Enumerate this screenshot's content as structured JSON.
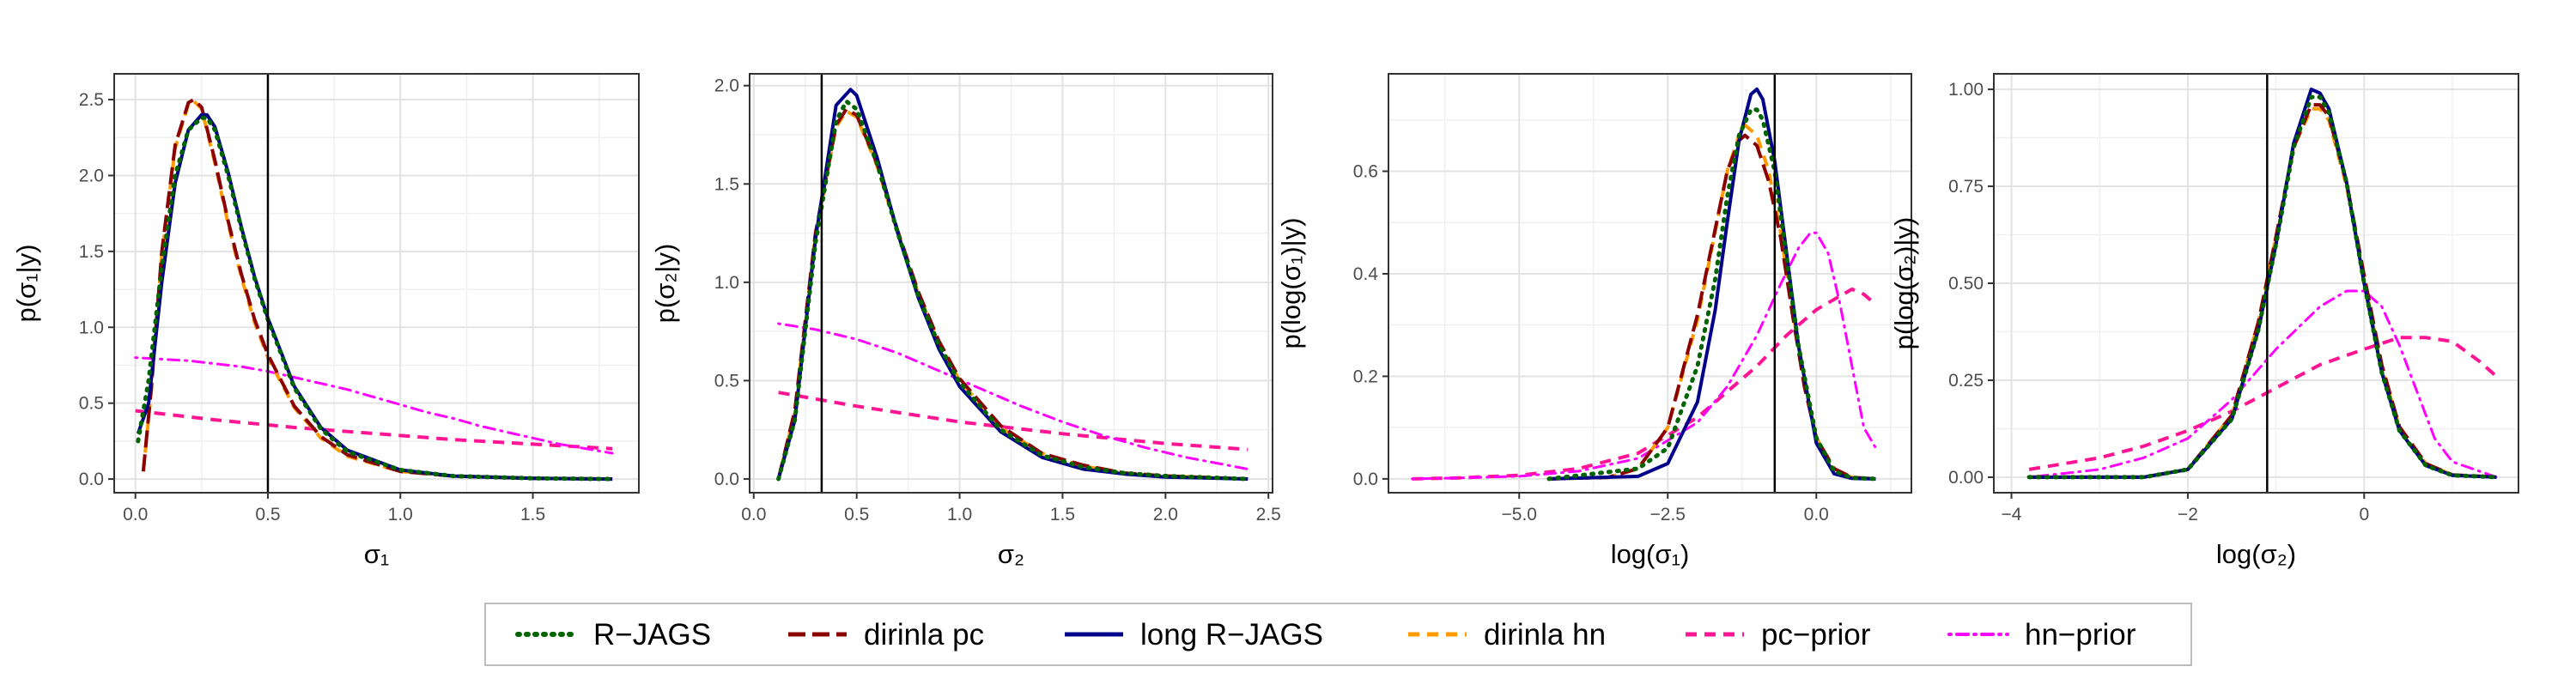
{
  "legend": {
    "items": [
      {
        "label": "R−JAGS",
        "color": "#006400",
        "dash": "dotted"
      },
      {
        "label": "dirinla pc",
        "color": "#8B0000",
        "dash": "longdash"
      },
      {
        "label": "long R−JAGS",
        "color": "#00008B",
        "dash": "solid"
      },
      {
        "label": "dirinla hn",
        "color": "#FF9900",
        "dash": "dashed"
      },
      {
        "label": "pc−prior",
        "color": "#FF1493",
        "dash": "dashed"
      },
      {
        "label": "hn−prior",
        "color": "#FF00FF",
        "dash": "dotdash"
      }
    ]
  },
  "chart_data": [
    {
      "type": "line",
      "xlabel": "σ₁",
      "ylabel": "p(σ₁|y)",
      "xlim": [
        -0.08,
        1.9
      ],
      "ylim": [
        -0.09,
        2.67
      ],
      "xticks": [
        0.0,
        0.5,
        1.0,
        1.5
      ],
      "xticklabels": [
        "0.0",
        "0.5",
        "1.0",
        "1.5"
      ],
      "yticks": [
        0.0,
        0.5,
        1.0,
        1.5,
        2.0,
        2.5
      ],
      "yticklabels": [
        "0.0",
        "0.5",
        "1.0",
        "1.5",
        "2.0",
        "2.5"
      ],
      "vline": 0.5,
      "series": [
        {
          "name": "R−JAGS",
          "x": [
            0.01,
            0.05,
            0.1,
            0.15,
            0.2,
            0.25,
            0.27,
            0.3,
            0.35,
            0.4,
            0.45,
            0.5,
            0.6,
            0.7,
            0.8,
            1.0,
            1.2,
            1.5,
            1.8
          ],
          "y": [
            0.25,
            0.65,
            1.4,
            2.0,
            2.3,
            2.38,
            2.38,
            2.3,
            2.0,
            1.65,
            1.32,
            1.05,
            0.6,
            0.33,
            0.18,
            0.06,
            0.02,
            0.005,
            0.0
          ]
        },
        {
          "name": "dirinla pc",
          "x": [
            0.03,
            0.06,
            0.1,
            0.15,
            0.2,
            0.22,
            0.25,
            0.3,
            0.35,
            0.4,
            0.45,
            0.5,
            0.6,
            0.7,
            0.8,
            1.0,
            1.2,
            1.5,
            1.8
          ],
          "y": [
            0.05,
            0.6,
            1.5,
            2.2,
            2.48,
            2.5,
            2.45,
            2.1,
            1.7,
            1.35,
            1.05,
            0.82,
            0.48,
            0.28,
            0.16,
            0.05,
            0.02,
            0.005,
            0.0
          ]
        },
        {
          "name": "long R−JAGS",
          "x": [
            0.01,
            0.05,
            0.1,
            0.15,
            0.2,
            0.25,
            0.27,
            0.3,
            0.35,
            0.4,
            0.45,
            0.5,
            0.6,
            0.7,
            0.8,
            1.0,
            1.2,
            1.5,
            1.8
          ],
          "y": [
            0.3,
            0.5,
            1.3,
            1.95,
            2.3,
            2.4,
            2.4,
            2.32,
            2.02,
            1.66,
            1.33,
            1.06,
            0.61,
            0.34,
            0.19,
            0.06,
            0.02,
            0.005,
            0.0
          ]
        },
        {
          "name": "dirinla hn",
          "x": [
            0.03,
            0.06,
            0.1,
            0.15,
            0.2,
            0.22,
            0.25,
            0.3,
            0.35,
            0.4,
            0.45,
            0.5,
            0.6,
            0.7,
            0.8,
            1.0,
            1.2,
            1.5,
            1.8
          ],
          "y": [
            0.05,
            0.58,
            1.48,
            2.18,
            2.47,
            2.49,
            2.44,
            2.08,
            1.68,
            1.33,
            1.03,
            0.8,
            0.47,
            0.27,
            0.15,
            0.05,
            0.02,
            0.005,
            0.0
          ]
        },
        {
          "name": "pc−prior",
          "x": [
            0.0,
            0.3,
            0.6,
            0.9,
            1.2,
            1.5,
            1.8
          ],
          "y": [
            0.45,
            0.39,
            0.34,
            0.3,
            0.26,
            0.23,
            0.2
          ]
        },
        {
          "name": "hn−prior",
          "x": [
            0.0,
            0.1,
            0.2,
            0.3,
            0.4,
            0.5,
            0.6,
            0.7,
            0.8,
            0.9,
            1.0,
            1.1,
            1.2,
            1.3,
            1.4,
            1.5,
            1.6,
            1.7,
            1.8
          ],
          "y": [
            0.8,
            0.79,
            0.78,
            0.76,
            0.74,
            0.71,
            0.67,
            0.63,
            0.59,
            0.54,
            0.49,
            0.44,
            0.4,
            0.35,
            0.31,
            0.27,
            0.23,
            0.2,
            0.17
          ]
        }
      ]
    },
    {
      "type": "line",
      "xlabel": "σ₂",
      "ylabel": "p(σ₂|y)",
      "xlim": [
        -0.02,
        2.52
      ],
      "ylim": [
        -0.07,
        2.06
      ],
      "xticks": [
        0.0,
        0.5,
        1.0,
        1.5,
        2.0,
        2.5
      ],
      "xticklabels": [
        "0.0",
        "0.5",
        "1.0",
        "1.5",
        "2.0",
        "2.5"
      ],
      "yticks": [
        0.0,
        0.5,
        1.0,
        1.5,
        2.0
      ],
      "yticklabels": [
        "0.0",
        "0.5",
        "1.0",
        "1.5",
        "2.0"
      ],
      "vline": 0.33,
      "series": [
        {
          "name": "R−JAGS",
          "x": [
            0.12,
            0.2,
            0.3,
            0.4,
            0.45,
            0.5,
            0.6,
            0.7,
            0.8,
            0.9,
            1.0,
            1.2,
            1.4,
            1.6,
            1.8,
            2.0,
            2.4
          ],
          "y": [
            0.0,
            0.3,
            1.2,
            1.82,
            1.92,
            1.88,
            1.6,
            1.25,
            0.93,
            0.68,
            0.49,
            0.25,
            0.12,
            0.06,
            0.03,
            0.015,
            0.0
          ]
        },
        {
          "name": "dirinla pc",
          "x": [
            0.12,
            0.2,
            0.3,
            0.4,
            0.45,
            0.5,
            0.6,
            0.7,
            0.8,
            0.9,
            1.0,
            1.2,
            1.4,
            1.6,
            1.8,
            2.0,
            2.4
          ],
          "y": [
            0.0,
            0.35,
            1.25,
            1.8,
            1.88,
            1.85,
            1.6,
            1.26,
            0.95,
            0.7,
            0.51,
            0.27,
            0.13,
            0.07,
            0.03,
            0.015,
            0.0
          ]
        },
        {
          "name": "long R−JAGS",
          "x": [
            0.12,
            0.2,
            0.3,
            0.4,
            0.47,
            0.5,
            0.6,
            0.7,
            0.8,
            0.9,
            1.0,
            1.2,
            1.4,
            1.6,
            1.8,
            2.0,
            2.4
          ],
          "y": [
            0.0,
            0.3,
            1.22,
            1.9,
            1.98,
            1.95,
            1.63,
            1.25,
            0.92,
            0.66,
            0.47,
            0.24,
            0.11,
            0.05,
            0.025,
            0.01,
            0.0
          ]
        },
        {
          "name": "dirinla hn",
          "x": [
            0.12,
            0.2,
            0.3,
            0.4,
            0.45,
            0.5,
            0.6,
            0.7,
            0.8,
            0.9,
            1.0,
            1.2,
            1.4,
            1.6,
            1.8,
            2.0,
            2.4
          ],
          "y": [
            0.0,
            0.34,
            1.24,
            1.79,
            1.87,
            1.84,
            1.59,
            1.25,
            0.94,
            0.69,
            0.5,
            0.26,
            0.13,
            0.065,
            0.03,
            0.015,
            0.0
          ]
        },
        {
          "name": "pc−prior",
          "x": [
            0.12,
            0.5,
            1.0,
            1.5,
            2.0,
            2.4
          ],
          "y": [
            0.44,
            0.37,
            0.29,
            0.23,
            0.18,
            0.15
          ]
        },
        {
          "name": "hn−prior",
          "x": [
            0.12,
            0.3,
            0.5,
            0.7,
            0.9,
            1.1,
            1.3,
            1.5,
            1.7,
            1.9,
            2.1,
            2.3,
            2.4
          ],
          "y": [
            0.79,
            0.76,
            0.71,
            0.64,
            0.55,
            0.46,
            0.37,
            0.29,
            0.22,
            0.16,
            0.11,
            0.07,
            0.05
          ]
        }
      ]
    },
    {
      "type": "line",
      "xlabel": "log(σ₁)",
      "ylabel": "p(log(σ₁)|y)",
      "xlim": [
        -7.2,
        1.6
      ],
      "ylim": [
        -0.027,
        0.79
      ],
      "xticks": [
        -5.0,
        -2.5,
        0.0
      ],
      "xticklabels": [
        "−5.0",
        "−2.5",
        "0.0"
      ],
      "yticks": [
        0.0,
        0.2,
        0.4,
        0.6
      ],
      "yticklabels": [
        "0.0",
        "0.2",
        "0.4",
        "0.6"
      ],
      "vline": -0.7,
      "series": [
        {
          "name": "R−JAGS",
          "x": [
            -4.5,
            -3.0,
            -2.5,
            -2.0,
            -1.7,
            -1.5,
            -1.3,
            -1.1,
            -1.0,
            -0.9,
            -0.7,
            -0.5,
            -0.3,
            0.0,
            0.3,
            0.6,
            1.0
          ],
          "y": [
            0.0,
            0.02,
            0.06,
            0.22,
            0.39,
            0.55,
            0.67,
            0.72,
            0.72,
            0.7,
            0.6,
            0.43,
            0.26,
            0.08,
            0.015,
            0.002,
            0.0
          ]
        },
        {
          "name": "dirinla pc",
          "x": [
            -4.5,
            -3.5,
            -3.0,
            -2.5,
            -2.0,
            -1.5,
            -1.3,
            -1.2,
            -1.0,
            -0.8,
            -0.6,
            -0.4,
            -0.2,
            0.0,
            0.3,
            0.6,
            1.0
          ],
          "y": [
            0.0,
            0.003,
            0.02,
            0.1,
            0.32,
            0.6,
            0.66,
            0.67,
            0.65,
            0.58,
            0.47,
            0.32,
            0.18,
            0.08,
            0.02,
            0.003,
            0.0
          ]
        },
        {
          "name": "long R−JAGS",
          "x": [
            -4.5,
            -3.0,
            -2.5,
            -2.0,
            -1.7,
            -1.5,
            -1.3,
            -1.1,
            -1.0,
            -0.9,
            -0.7,
            -0.5,
            -0.3,
            0.0,
            0.3,
            0.6,
            1.0
          ],
          "y": [
            0.0,
            0.005,
            0.03,
            0.15,
            0.33,
            0.5,
            0.66,
            0.75,
            0.76,
            0.74,
            0.62,
            0.44,
            0.26,
            0.07,
            0.01,
            0.001,
            0.0
          ]
        },
        {
          "name": "dirinla hn",
          "x": [
            -4.5,
            -3.5,
            -3.0,
            -2.5,
            -2.0,
            -1.5,
            -1.3,
            -1.2,
            -1.0,
            -0.8,
            -0.6,
            -0.4,
            -0.2,
            0.0,
            0.3,
            0.6,
            1.0
          ],
          "y": [
            0.0,
            0.003,
            0.02,
            0.1,
            0.31,
            0.6,
            0.67,
            0.69,
            0.67,
            0.6,
            0.48,
            0.33,
            0.19,
            0.08,
            0.02,
            0.003,
            0.0
          ]
        },
        {
          "name": "pc−prior",
          "x": [
            -6.8,
            -6.0,
            -5.0,
            -4.0,
            -3.0,
            -2.0,
            -1.5,
            -1.0,
            -0.5,
            0.0,
            0.3,
            0.6,
            0.8,
            1.0
          ],
          "y": [
            0.0,
            0.002,
            0.007,
            0.02,
            0.05,
            0.12,
            0.17,
            0.22,
            0.28,
            0.33,
            0.35,
            0.37,
            0.36,
            0.34
          ]
        },
        {
          "name": "hn−prior",
          "x": [
            -6.8,
            -6.0,
            -5.0,
            -4.0,
            -3.0,
            -2.0,
            -1.5,
            -1.0,
            -0.6,
            -0.3,
            -0.1,
            0.0,
            0.2,
            0.4,
            0.6,
            0.8,
            1.0
          ],
          "y": [
            0.0,
            0.002,
            0.005,
            0.015,
            0.04,
            0.11,
            0.18,
            0.28,
            0.38,
            0.45,
            0.48,
            0.48,
            0.44,
            0.34,
            0.22,
            0.1,
            0.06
          ]
        }
      ]
    },
    {
      "type": "line",
      "xlabel": "log(σ₂)",
      "ylabel": "p(log(σ₂)|y)",
      "xlim": [
        -4.2,
        1.75
      ],
      "ylim": [
        -0.04,
        1.04
      ],
      "xticks": [
        -4,
        -2,
        0
      ],
      "xticklabels": [
        "−4",
        "−2",
        "0"
      ],
      "yticks": [
        0.0,
        0.25,
        0.5,
        0.75,
        1.0
      ],
      "yticklabels": [
        "0.00",
        "0.25",
        "0.50",
        "0.75",
        "1.00"
      ],
      "vline": -1.1,
      "series": [
        {
          "name": "R−JAGS",
          "x": [
            -3.8,
            -2.5,
            -2.0,
            -1.5,
            -1.2,
            -1.0,
            -0.8,
            -0.6,
            -0.5,
            -0.4,
            -0.2,
            0.0,
            0.2,
            0.4,
            0.7,
            1.0,
            1.5
          ],
          "y": [
            0.0,
            0.0,
            0.02,
            0.15,
            0.38,
            0.6,
            0.85,
            0.98,
            0.98,
            0.94,
            0.76,
            0.5,
            0.27,
            0.12,
            0.03,
            0.005,
            0.0
          ]
        },
        {
          "name": "dirinla pc",
          "x": [
            -3.8,
            -2.5,
            -2.0,
            -1.5,
            -1.2,
            -1.0,
            -0.8,
            -0.6,
            -0.5,
            -0.4,
            -0.2,
            0.0,
            0.2,
            0.4,
            0.7,
            1.0,
            1.5
          ],
          "y": [
            0.0,
            0.0,
            0.02,
            0.16,
            0.4,
            0.62,
            0.85,
            0.96,
            0.96,
            0.93,
            0.76,
            0.52,
            0.29,
            0.13,
            0.035,
            0.006,
            0.0
          ]
        },
        {
          "name": "long R−JAGS",
          "x": [
            -3.8,
            -2.5,
            -2.0,
            -1.5,
            -1.2,
            -1.0,
            -0.8,
            -0.6,
            -0.5,
            -0.4,
            -0.2,
            0.0,
            0.2,
            0.4,
            0.7,
            1.0,
            1.5
          ],
          "y": [
            0.0,
            0.0,
            0.02,
            0.15,
            0.38,
            0.6,
            0.86,
            1.0,
            0.99,
            0.95,
            0.76,
            0.5,
            0.27,
            0.12,
            0.03,
            0.005,
            0.0
          ]
        },
        {
          "name": "dirinla hn",
          "x": [
            -3.8,
            -2.5,
            -2.0,
            -1.5,
            -1.2,
            -1.0,
            -0.8,
            -0.6,
            -0.5,
            -0.4,
            -0.2,
            0.0,
            0.2,
            0.4,
            0.7,
            1.0,
            1.5
          ],
          "y": [
            0.0,
            0.0,
            0.02,
            0.16,
            0.4,
            0.62,
            0.85,
            0.95,
            0.95,
            0.92,
            0.75,
            0.51,
            0.28,
            0.13,
            0.035,
            0.006,
            0.0
          ]
        },
        {
          "name": "pc−prior",
          "x": [
            -3.8,
            -3.0,
            -2.5,
            -2.0,
            -1.5,
            -1.0,
            -0.5,
            0.0,
            0.4,
            0.7,
            1.0,
            1.3,
            1.5
          ],
          "y": [
            0.02,
            0.05,
            0.08,
            0.12,
            0.17,
            0.23,
            0.29,
            0.33,
            0.36,
            0.36,
            0.35,
            0.3,
            0.26
          ]
        },
        {
          "name": "hn−prior",
          "x": [
            -3.8,
            -3.0,
            -2.5,
            -2.0,
            -1.5,
            -1.0,
            -0.5,
            -0.2,
            0.0,
            0.2,
            0.4,
            0.6,
            0.8,
            1.0,
            1.5
          ],
          "y": [
            0.0,
            0.02,
            0.05,
            0.1,
            0.2,
            0.33,
            0.44,
            0.48,
            0.48,
            0.44,
            0.34,
            0.22,
            0.1,
            0.04,
            0.0
          ]
        }
      ]
    }
  ]
}
